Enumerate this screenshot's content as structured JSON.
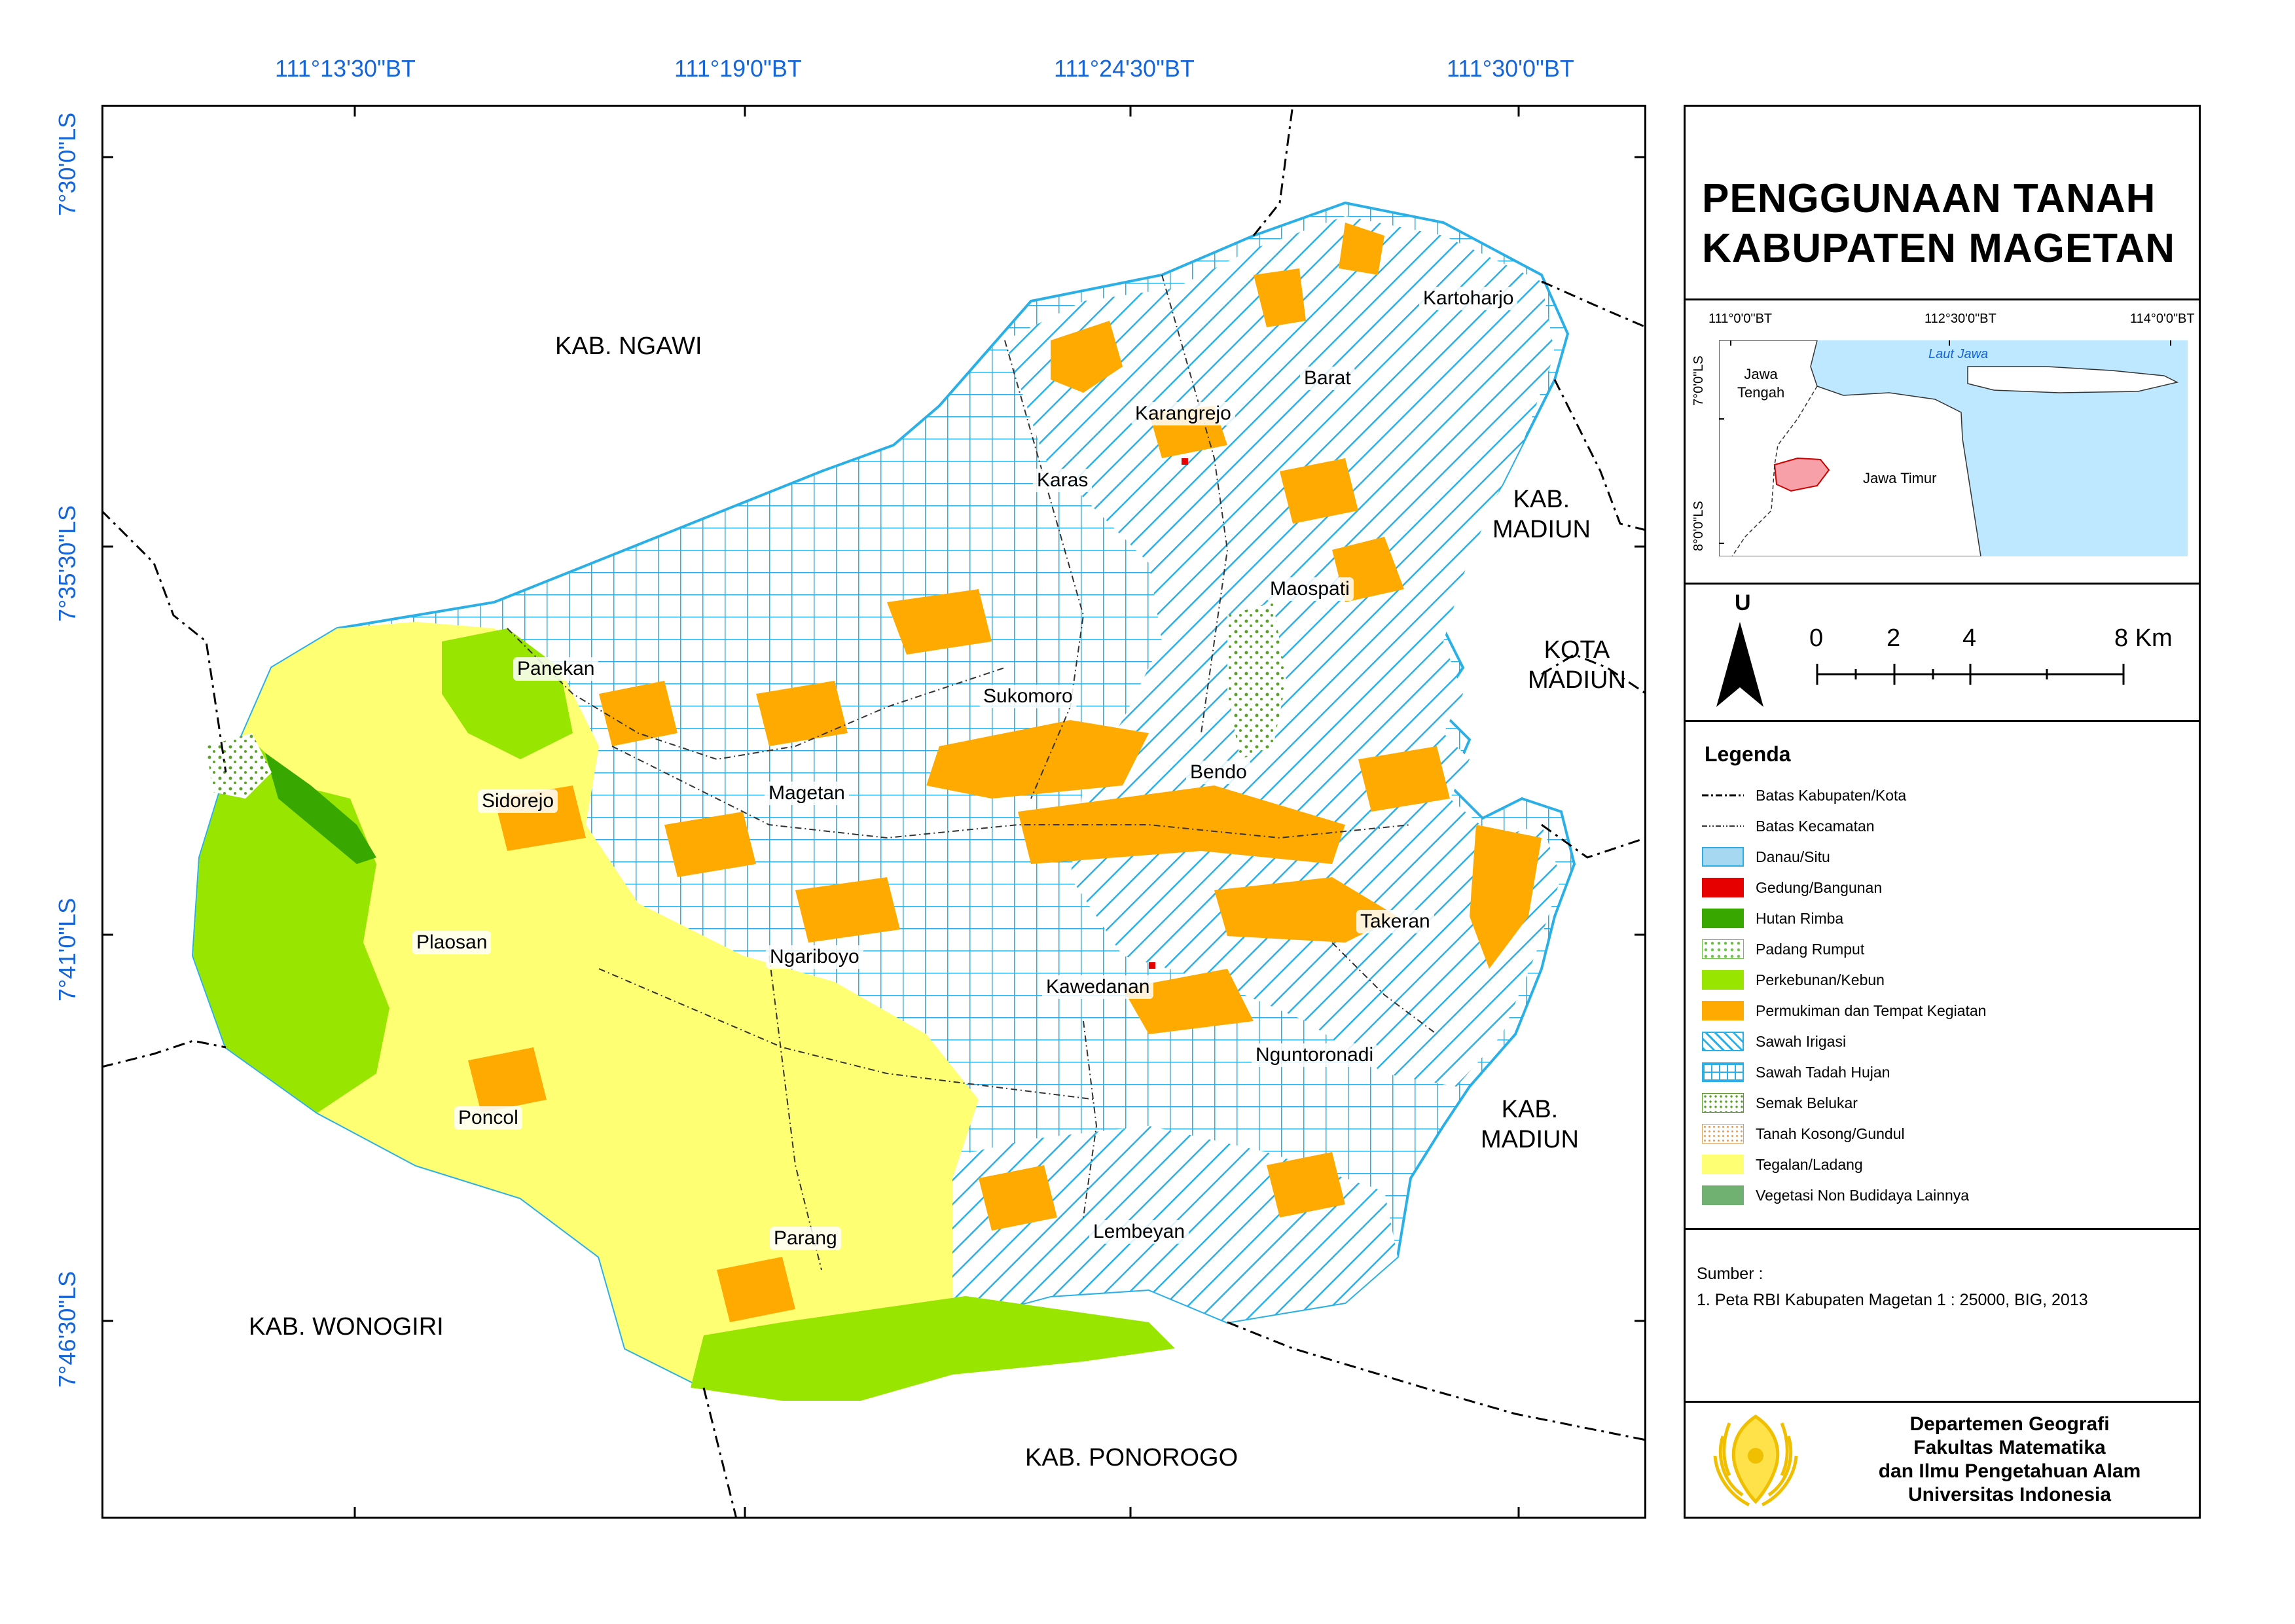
{
  "title": {
    "line1": "PENGGUNAAN TANAH",
    "line2": "KABUPATEN MAGETAN"
  },
  "coords": {
    "top": [
      "111°13'30\"BT",
      "111°19'0\"BT",
      "111°24'30\"BT",
      "111°30'0\"BT"
    ],
    "left": [
      "7°30'0\"LS",
      "7°35'30\"LS",
      "7°41'0\"LS",
      "7°46'30\"LS"
    ]
  },
  "regions": {
    "ngawi": "KAB. NGAWI",
    "madiun_north": [
      "KAB.",
      "MADIUN"
    ],
    "kota_madiun": [
      "KOTA",
      "MADIUN"
    ],
    "madiun_south": [
      "KAB.",
      "MADIUN"
    ],
    "wonogiri": "KAB. WONOGIRI",
    "ponorogo": "KAB. PONOROGO"
  },
  "districts": [
    "Kartoharjo",
    "Barat",
    "Karangrejo",
    "Karas",
    "Maospati",
    "Panekan",
    "Sukomoro",
    "Bendo",
    "Sidorejo",
    "Magetan",
    "Takeran",
    "Plaosan",
    "Ngariboyo",
    "Kawedanan",
    "Nguntoronadi",
    "Poncol",
    "Parang",
    "Lembeyan"
  ],
  "inset": {
    "coords_top": [
      "111°0'0\"BT",
      "112°30'0\"BT",
      "114°0'0\"BT"
    ],
    "coords_left": [
      "7°0'0\"LS",
      "8°0'0\"LS"
    ],
    "sea": "Laut Jawa",
    "west": [
      "Jawa",
      "Tengah"
    ],
    "east": "Jawa Timur"
  },
  "scale": {
    "north": "U",
    "ticks": [
      "0",
      "2",
      "4",
      "8 Km"
    ]
  },
  "legend": {
    "heading": "Legenda",
    "items": [
      {
        "label": "Batas Kabupaten/Kota",
        "kind": "line-dash"
      },
      {
        "label": "Batas Kecamatan",
        "kind": "line-dot"
      },
      {
        "label": "Danau/Situ",
        "kind": "fill",
        "color": "#a6d8f2"
      },
      {
        "label": "Gedung/Bangunan",
        "kind": "fill",
        "color": "#e60000"
      },
      {
        "label": "Hutan Rimba",
        "kind": "fill",
        "color": "#38a800"
      },
      {
        "label": "Padang Rumput",
        "kind": "pattern-grass",
        "color": "#6fc24a"
      },
      {
        "label": "Perkebunan/Kebun",
        "kind": "fill",
        "color": "#98e600"
      },
      {
        "label": "Permukiman dan Tempat Kegiatan",
        "kind": "fill",
        "color": "#ffaa00"
      },
      {
        "label": "Sawah Irigasi",
        "kind": "pattern-diag",
        "color": "#2ab0e6"
      },
      {
        "label": "Sawah Tadah Hujan",
        "kind": "pattern-grid",
        "color": "#2ab0e6"
      },
      {
        "label": "Semak Belukar",
        "kind": "pattern-dots",
        "color": "#5aa02c"
      },
      {
        "label": "Tanah Kosong/Gundul",
        "kind": "pattern-sand",
        "color": "#e0a060"
      },
      {
        "label": "Tegalan/Ladang",
        "kind": "fill",
        "color": "#ffff73"
      },
      {
        "label": "Vegetasi Non Budidaya Lainnya",
        "kind": "fill",
        "color": "#70b070"
      }
    ]
  },
  "source": {
    "heading": "Sumber :",
    "line": "1. Peta RBI Kabupaten Magetan 1 : 25000, BIG, 2013"
  },
  "institution": [
    "Departemen Geografi",
    "Fakultas Matematika",
    "dan Ilmu Pengetahuan Alam",
    "Universitas Indonesia"
  ]
}
